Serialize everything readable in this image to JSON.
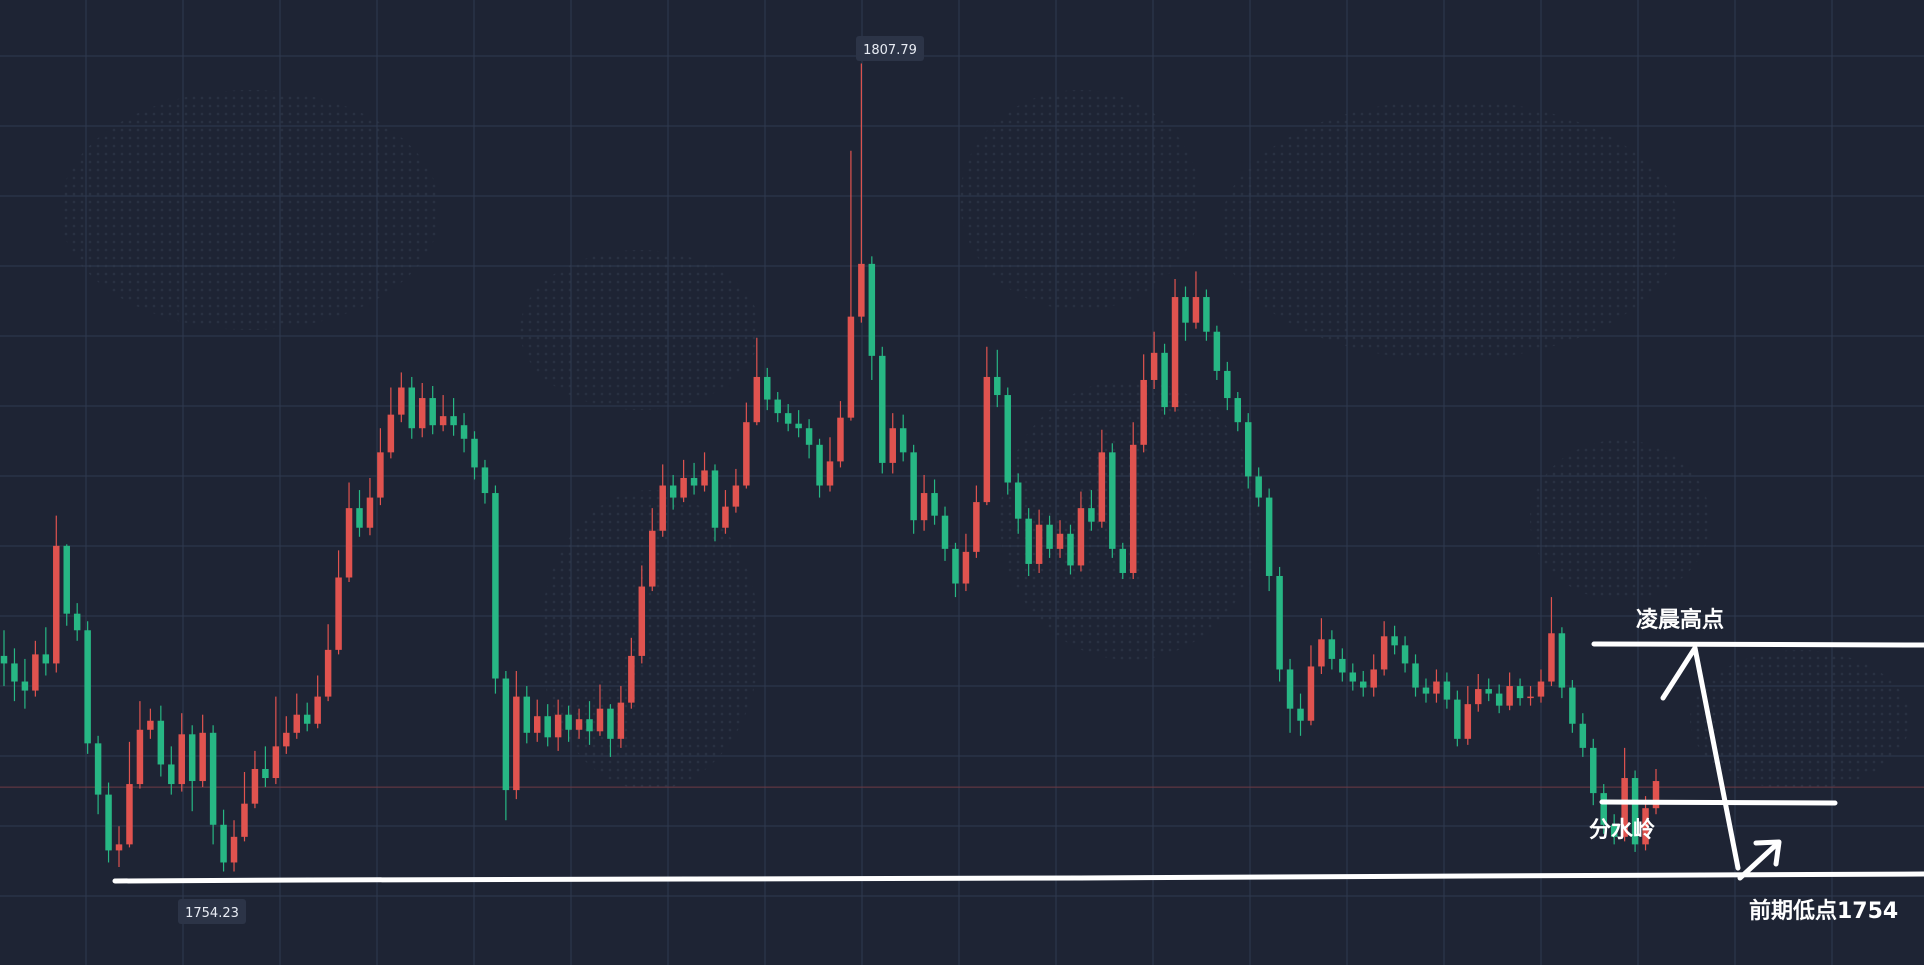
{
  "chart_data": {
    "type": "candlestick",
    "title": "",
    "xlabel": "",
    "ylabel": "",
    "ylim": [
      1748.0,
      1812.0
    ],
    "grid": true,
    "colors": {
      "up": "#e0534f",
      "down": "#27b784",
      "background": "#1e2434",
      "grid": "#2f3a4f",
      "annotation": "#ffffff"
    },
    "high_label": "1807.79",
    "low_label": "1754.23",
    "current_price": 1759.8,
    "ohlc": [
      [
        1768.5,
        1768.0,
        1770.2,
        1766.5
      ],
      [
        1768.0,
        1766.8,
        1769.0,
        1765.5
      ],
      [
        1766.8,
        1766.2,
        1768.3,
        1765.0
      ],
      [
        1766.2,
        1768.6,
        1769.5,
        1765.8
      ],
      [
        1768.6,
        1768.0,
        1770.4,
        1767.2
      ],
      [
        1768.0,
        1775.8,
        1777.8,
        1767.4
      ],
      [
        1775.8,
        1771.3,
        1775.9,
        1770.5
      ],
      [
        1771.3,
        1770.2,
        1772.0,
        1769.5
      ],
      [
        1770.2,
        1762.7,
        1770.8,
        1762.0
      ],
      [
        1762.7,
        1759.3,
        1763.2,
        1758.0
      ],
      [
        1759.3,
        1755.6,
        1760.1,
        1754.8
      ],
      [
        1755.6,
        1756.0,
        1757.2,
        1754.5
      ],
      [
        1756.0,
        1760.0,
        1762.8,
        1755.8
      ],
      [
        1760.0,
        1763.6,
        1765.5,
        1759.7
      ],
      [
        1763.6,
        1764.2,
        1765.0,
        1763.0
      ],
      [
        1764.2,
        1761.3,
        1765.2,
        1760.5
      ],
      [
        1761.3,
        1760.0,
        1762.5,
        1759.3
      ],
      [
        1760.0,
        1763.3,
        1764.7,
        1759.5
      ],
      [
        1763.3,
        1760.2,
        1763.9,
        1758.2
      ],
      [
        1760.2,
        1763.4,
        1764.6,
        1759.8
      ],
      [
        1763.4,
        1757.3,
        1763.9,
        1756.0
      ],
      [
        1757.3,
        1754.8,
        1758.3,
        1754.2
      ],
      [
        1754.8,
        1756.5,
        1757.6,
        1754.2
      ],
      [
        1756.5,
        1758.7,
        1760.8,
        1756.2
      ],
      [
        1758.7,
        1761.0,
        1762.2,
        1758.4
      ],
      [
        1761.0,
        1760.4,
        1762.5,
        1759.8
      ],
      [
        1760.4,
        1762.5,
        1765.8,
        1760.0
      ],
      [
        1762.5,
        1763.4,
        1764.5,
        1762.0
      ],
      [
        1763.4,
        1764.6,
        1766.0,
        1763.0
      ],
      [
        1764.6,
        1764.0,
        1765.4,
        1763.5
      ],
      [
        1764.0,
        1765.8,
        1767.2,
        1763.7
      ],
      [
        1765.8,
        1768.9,
        1770.6,
        1765.5
      ],
      [
        1768.9,
        1773.7,
        1775.5,
        1768.6
      ],
      [
        1773.7,
        1778.3,
        1780.0,
        1773.4
      ],
      [
        1778.3,
        1777.0,
        1779.5,
        1776.4
      ],
      [
        1777.0,
        1779.0,
        1780.3,
        1776.5
      ],
      [
        1779.0,
        1782.0,
        1783.6,
        1778.5
      ],
      [
        1782.0,
        1784.5,
        1786.3,
        1781.6
      ],
      [
        1784.5,
        1786.3,
        1787.3,
        1784.0
      ],
      [
        1786.3,
        1783.6,
        1787.0,
        1782.9
      ],
      [
        1783.6,
        1785.6,
        1786.6,
        1783.0
      ],
      [
        1785.6,
        1783.8,
        1786.4,
        1783.2
      ],
      [
        1783.8,
        1784.4,
        1785.8,
        1783.4
      ],
      [
        1784.4,
        1783.8,
        1785.6,
        1783.1
      ],
      [
        1783.8,
        1782.9,
        1784.6,
        1782.0
      ],
      [
        1782.9,
        1781.0,
        1783.4,
        1780.2
      ],
      [
        1781.0,
        1779.3,
        1781.5,
        1778.6
      ],
      [
        1779.3,
        1767.0,
        1779.8,
        1766.0
      ],
      [
        1767.0,
        1759.6,
        1767.5,
        1757.6
      ],
      [
        1759.6,
        1765.8,
        1767.5,
        1759.0
      ],
      [
        1765.8,
        1763.4,
        1766.5,
        1762.7
      ],
      [
        1763.4,
        1764.5,
        1765.6,
        1762.8
      ],
      [
        1764.5,
        1763.1,
        1765.3,
        1762.5
      ],
      [
        1763.1,
        1764.6,
        1765.6,
        1762.2
      ],
      [
        1764.6,
        1763.6,
        1765.2,
        1762.8
      ],
      [
        1763.6,
        1764.3,
        1765.0,
        1763.0
      ],
      [
        1764.3,
        1763.5,
        1765.5,
        1762.6
      ],
      [
        1763.5,
        1765.0,
        1766.6,
        1763.2
      ],
      [
        1765.0,
        1763.0,
        1765.3,
        1761.8
      ],
      [
        1763.0,
        1765.4,
        1766.5,
        1762.4
      ],
      [
        1765.4,
        1768.5,
        1769.7,
        1765.0
      ],
      [
        1768.5,
        1773.1,
        1774.5,
        1768.0
      ],
      [
        1773.1,
        1776.8,
        1778.3,
        1772.8
      ],
      [
        1776.8,
        1779.8,
        1781.2,
        1776.4
      ],
      [
        1779.8,
        1779.0,
        1780.5,
        1778.2
      ],
      [
        1779.0,
        1780.3,
        1781.5,
        1778.7
      ],
      [
        1780.3,
        1779.8,
        1781.3,
        1779.2
      ],
      [
        1779.8,
        1780.8,
        1782.0,
        1779.4
      ],
      [
        1780.8,
        1777.0,
        1781.2,
        1776.1
      ],
      [
        1777.0,
        1778.4,
        1779.5,
        1776.6
      ],
      [
        1778.4,
        1779.8,
        1780.9,
        1778.0
      ],
      [
        1779.8,
        1784.0,
        1785.3,
        1779.6
      ],
      [
        1784.0,
        1787.0,
        1789.6,
        1783.8
      ],
      [
        1787.0,
        1785.5,
        1787.6,
        1784.8
      ],
      [
        1785.5,
        1784.6,
        1786.0,
        1784.0
      ],
      [
        1784.6,
        1783.9,
        1785.2,
        1783.4
      ],
      [
        1783.9,
        1783.6,
        1784.8,
        1783.0
      ],
      [
        1783.6,
        1782.5,
        1784.2,
        1781.6
      ],
      [
        1782.5,
        1779.8,
        1782.9,
        1779.0
      ],
      [
        1779.8,
        1781.4,
        1783.0,
        1779.4
      ],
      [
        1781.4,
        1784.3,
        1785.4,
        1781.0
      ],
      [
        1784.3,
        1791.0,
        1802.0,
        1784.1
      ],
      [
        1791.0,
        1794.5,
        1807.79,
        1790.6
      ],
      [
        1794.5,
        1788.4,
        1795.0,
        1786.8
      ],
      [
        1788.4,
        1781.3,
        1789.0,
        1780.6
      ],
      [
        1781.3,
        1783.6,
        1784.6,
        1780.6
      ],
      [
        1783.6,
        1782.0,
        1784.5,
        1781.4
      ],
      [
        1782.0,
        1777.5,
        1782.5,
        1776.6
      ],
      [
        1777.5,
        1779.3,
        1780.5,
        1776.8
      ],
      [
        1779.3,
        1777.8,
        1780.2,
        1777.2
      ],
      [
        1777.8,
        1775.6,
        1778.4,
        1774.8
      ],
      [
        1775.6,
        1773.3,
        1776.0,
        1772.4
      ],
      [
        1773.3,
        1775.4,
        1776.6,
        1772.8
      ],
      [
        1775.4,
        1778.7,
        1779.8,
        1775.0
      ],
      [
        1778.7,
        1787.0,
        1789.0,
        1778.5
      ],
      [
        1787.0,
        1785.8,
        1788.8,
        1785.0
      ],
      [
        1785.8,
        1780.0,
        1786.3,
        1779.2
      ],
      [
        1780.0,
        1777.6,
        1780.6,
        1776.6
      ],
      [
        1777.6,
        1774.6,
        1778.3,
        1773.8
      ],
      [
        1774.6,
        1777.2,
        1778.2,
        1774.0
      ],
      [
        1777.2,
        1775.6,
        1777.8,
        1775.0
      ],
      [
        1775.6,
        1776.6,
        1777.5,
        1775.0
      ],
      [
        1776.6,
        1774.5,
        1777.2,
        1773.9
      ],
      [
        1774.5,
        1778.3,
        1779.4,
        1774.1
      ],
      [
        1778.3,
        1777.4,
        1779.5,
        1776.8
      ],
      [
        1777.4,
        1782.0,
        1783.5,
        1777.0
      ],
      [
        1782.0,
        1775.6,
        1782.6,
        1775.0
      ],
      [
        1775.6,
        1774.0,
        1776.0,
        1773.6
      ],
      [
        1774.0,
        1782.5,
        1784.0,
        1773.6
      ],
      [
        1782.5,
        1786.8,
        1788.5,
        1782.0
      ],
      [
        1786.8,
        1788.6,
        1790.0,
        1786.2
      ],
      [
        1788.6,
        1785.0,
        1789.2,
        1784.5
      ],
      [
        1785.0,
        1792.3,
        1793.5,
        1784.7
      ],
      [
        1792.3,
        1790.6,
        1793.0,
        1789.4
      ],
      [
        1790.6,
        1792.3,
        1794.0,
        1790.2
      ],
      [
        1792.3,
        1790.0,
        1792.8,
        1789.4
      ],
      [
        1790.0,
        1787.4,
        1790.4,
        1786.8
      ],
      [
        1787.4,
        1785.6,
        1788.0,
        1784.8
      ],
      [
        1785.6,
        1784.0,
        1786.0,
        1783.4
      ],
      [
        1784.0,
        1780.4,
        1784.6,
        1779.6
      ],
      [
        1780.4,
        1779.0,
        1781.0,
        1778.4
      ],
      [
        1779.0,
        1773.8,
        1779.6,
        1772.8
      ],
      [
        1773.8,
        1767.6,
        1774.4,
        1766.8
      ],
      [
        1767.6,
        1765.0,
        1768.3,
        1763.4
      ],
      [
        1765.0,
        1764.2,
        1766.0,
        1763.2
      ],
      [
        1764.2,
        1767.8,
        1769.2,
        1763.9
      ],
      [
        1767.8,
        1769.6,
        1771.0,
        1767.3
      ],
      [
        1769.6,
        1768.3,
        1770.2,
        1767.6
      ],
      [
        1768.3,
        1767.4,
        1769.0,
        1766.8
      ],
      [
        1767.4,
        1766.8,
        1768.0,
        1766.2
      ],
      [
        1766.8,
        1766.4,
        1767.5,
        1765.8
      ],
      [
        1766.4,
        1767.6,
        1768.6,
        1765.8
      ],
      [
        1767.6,
        1769.8,
        1770.8,
        1767.2
      ],
      [
        1769.8,
        1769.2,
        1770.5,
        1768.6
      ],
      [
        1769.2,
        1768.0,
        1769.8,
        1767.4
      ],
      [
        1768.0,
        1766.4,
        1768.6,
        1765.8
      ],
      [
        1766.4,
        1766.0,
        1767.0,
        1765.4
      ],
      [
        1766.0,
        1766.8,
        1767.6,
        1765.4
      ],
      [
        1766.8,
        1765.6,
        1767.4,
        1765.0
      ],
      [
        1765.6,
        1763.0,
        1766.2,
        1762.5
      ],
      [
        1763.0,
        1765.3,
        1766.5,
        1762.6
      ],
      [
        1765.3,
        1766.3,
        1767.3,
        1764.8
      ],
      [
        1766.3,
        1766.0,
        1767.0,
        1765.5
      ],
      [
        1766.0,
        1765.2,
        1766.6,
        1764.7
      ],
      [
        1765.2,
        1766.5,
        1767.4,
        1764.9
      ],
      [
        1766.5,
        1765.7,
        1767.0,
        1765.2
      ],
      [
        1765.7,
        1765.8,
        1766.5,
        1765.2
      ],
      [
        1765.8,
        1766.8,
        1767.6,
        1765.4
      ],
      [
        1766.8,
        1770.0,
        1772.4,
        1766.5
      ],
      [
        1770.0,
        1766.4,
        1770.4,
        1765.7
      ],
      [
        1766.4,
        1764.0,
        1766.9,
        1763.4
      ],
      [
        1764.0,
        1762.4,
        1764.7,
        1761.8
      ],
      [
        1762.4,
        1759.4,
        1763.0,
        1758.6
      ],
      [
        1759.4,
        1757.3,
        1760.0,
        1756.7
      ],
      [
        1757.3,
        1756.5,
        1758.0,
        1756.0
      ],
      [
        1756.5,
        1760.4,
        1762.4,
        1756.2
      ],
      [
        1760.4,
        1756.0,
        1760.9,
        1755.5
      ],
      [
        1756.0,
        1758.4,
        1759.2,
        1755.6
      ],
      [
        1758.4,
        1760.2,
        1761.0,
        1758.0
      ]
    ],
    "annotations": [
      {
        "text": "凌晨高点"
      },
      {
        "text": "分水岭"
      },
      {
        "text": "前期低点1754"
      }
    ]
  }
}
